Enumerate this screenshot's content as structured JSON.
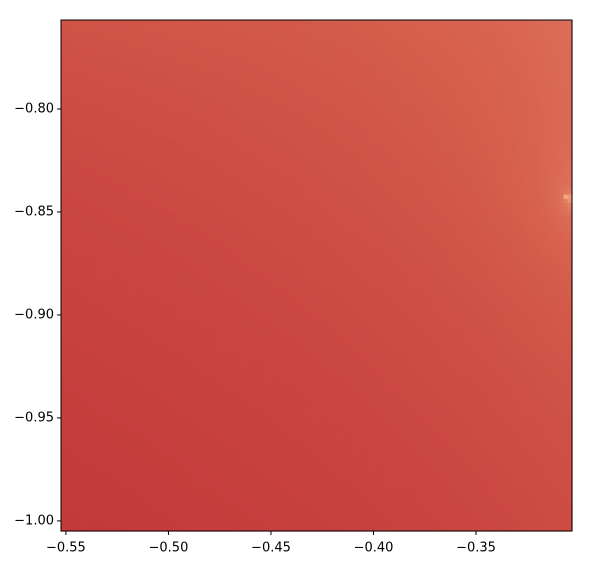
{
  "chart_data": {
    "type": "image",
    "xlim": [
      -0.5524,
      -0.3032
    ],
    "ylim": [
      -1.0049,
      -0.7568
    ],
    "xticks": [
      {
        "value": -0.55,
        "label": "−0.55"
      },
      {
        "value": -0.5,
        "label": "−0.50"
      },
      {
        "value": -0.45,
        "label": "−0.45"
      },
      {
        "value": -0.4,
        "label": "−0.40"
      },
      {
        "value": -0.35,
        "label": "−0.35"
      }
    ],
    "yticks": [
      {
        "value": -0.8,
        "label": "−0.80"
      },
      {
        "value": -0.85,
        "label": "−0.85"
      },
      {
        "value": -0.9,
        "label": "−0.90"
      },
      {
        "value": -0.95,
        "label": "−0.95"
      },
      {
        "value": -1.0,
        "label": "−1.00"
      }
    ]
  }
}
